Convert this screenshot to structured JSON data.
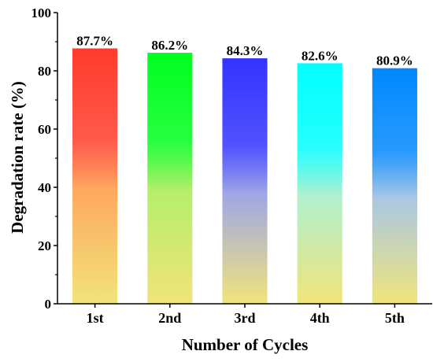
{
  "chart_data": {
    "type": "bar",
    "categories": [
      "1st",
      "2nd",
      "3rd",
      "4th",
      "5th"
    ],
    "values": [
      87.7,
      86.2,
      84.3,
      82.6,
      80.9
    ],
    "data_labels": [
      "87.7%",
      "86.2%",
      "84.3%",
      "82.6%",
      "80.9%"
    ],
    "xlabel": "Number of Cycles",
    "ylabel": "Degradation rate (%)",
    "ylim": [
      0,
      100
    ],
    "yticks": [
      0,
      20,
      40,
      60,
      80,
      100
    ],
    "ytick_labels": [
      "0",
      "20",
      "40",
      "60",
      "80",
      "100"
    ],
    "grid": false,
    "bar_gradients": [
      {
        "top": "#ff3b2b",
        "mid": "#ffa860",
        "bottom": "#f1e47a"
      },
      {
        "top": "#00ff1f",
        "mid": "#b5ee6a",
        "bottom": "#f1e47a"
      },
      {
        "top": "#3333ff",
        "mid": "#9fa6e6",
        "bottom": "#f1e47a"
      },
      {
        "top": "#00ffff",
        "mid": "#b0f0cf",
        "bottom": "#f1e47a"
      },
      {
        "top": "#0088ff",
        "mid": "#a9c8e4",
        "bottom": "#f1e47a"
      }
    ]
  }
}
